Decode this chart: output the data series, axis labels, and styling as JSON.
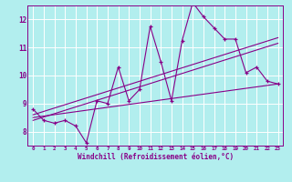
{
  "title": "",
  "xlabel": "Windchill (Refroidissement éolien,°C)",
  "ylabel": "",
  "bg_color": "#b2eeee",
  "line_color": "#880088",
  "grid_color": "#ffffff",
  "x_data": [
    0,
    1,
    2,
    3,
    4,
    5,
    6,
    7,
    8,
    9,
    10,
    11,
    12,
    13,
    14,
    15,
    16,
    17,
    18,
    19,
    20,
    21,
    22,
    23
  ],
  "y_data": [
    8.8,
    8.4,
    8.3,
    8.4,
    8.2,
    7.6,
    9.1,
    9.0,
    10.3,
    9.1,
    9.5,
    11.75,
    10.5,
    9.1,
    11.25,
    12.6,
    12.1,
    11.7,
    11.3,
    11.3,
    10.1,
    10.3,
    9.8,
    9.7
  ],
  "ylim": [
    7.5,
    12.5
  ],
  "xlim": [
    -0.5,
    23.5
  ],
  "yticks": [
    8,
    9,
    10,
    11,
    12
  ],
  "xticks": [
    0,
    1,
    2,
    3,
    4,
    5,
    6,
    7,
    8,
    9,
    10,
    11,
    12,
    13,
    14,
    15,
    16,
    17,
    18,
    19,
    20,
    21,
    22,
    23
  ],
  "trend1_x": [
    0,
    23
  ],
  "trend1_y": [
    8.5,
    9.7
  ],
  "trend2_x": [
    0,
    23
  ],
  "trend2_y": [
    8.4,
    11.15
  ],
  "trend3_x": [
    0,
    23
  ],
  "trend3_y": [
    8.6,
    11.35
  ]
}
